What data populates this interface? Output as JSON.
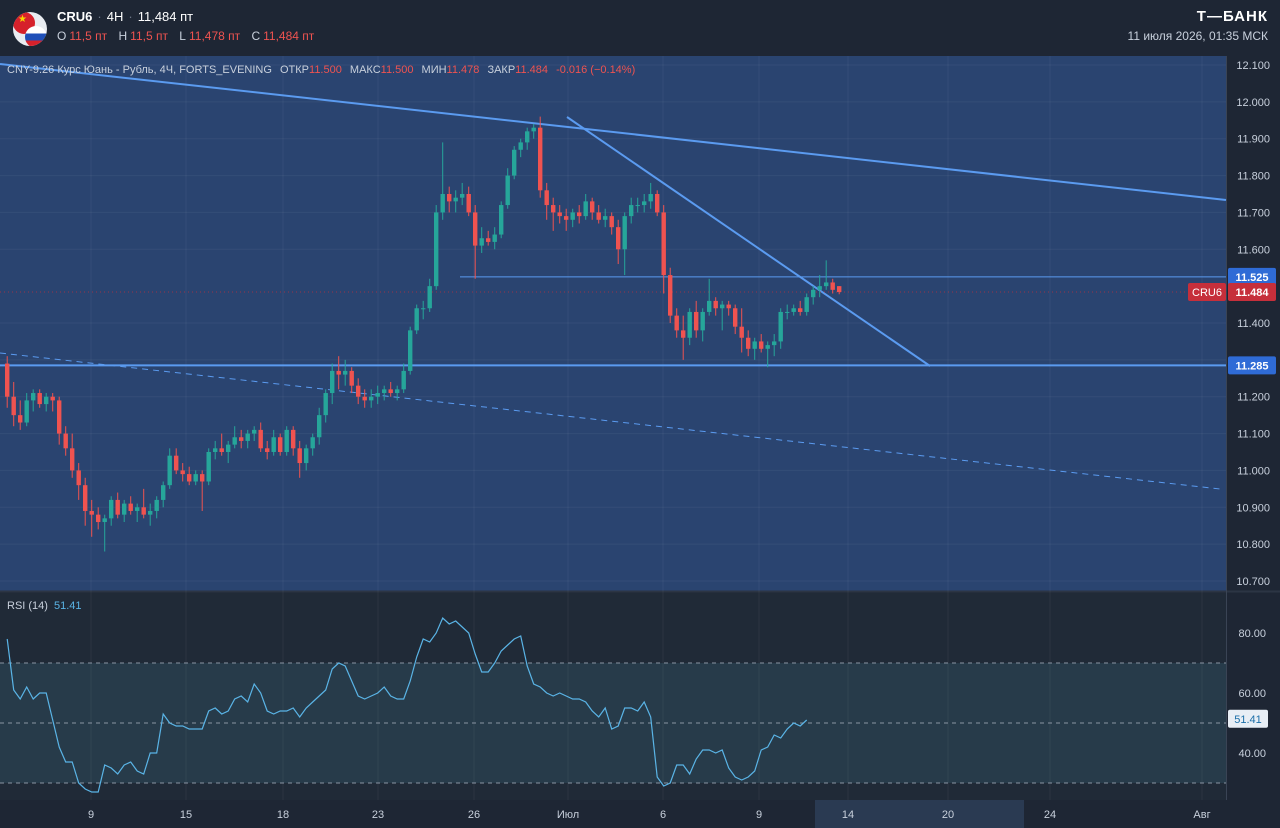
{
  "header": {
    "symbol": "CRU6",
    "timeframe": "4H",
    "price": "11,484 пт",
    "ohlc": [
      {
        "label": "O",
        "value": "11,5 пт"
      },
      {
        "label": "H",
        "value": "11,5 пт"
      },
      {
        "label": "L",
        "value": "11,478 пт"
      },
      {
        "label": "C",
        "value": "11,484 пт"
      }
    ],
    "brand": "Т—БАНК",
    "datetime": "11 июля 2026, 01:35 МСК"
  },
  "legend": {
    "instrument": "CNY-9.26 Курс Юань - Рубль, 4Ч, FORTS_EVENING",
    "open_label": "ОТКР",
    "open": "11.500",
    "high_label": "МАКС",
    "high": "11.500",
    "low_label": "МИН",
    "low": "11.478",
    "close_label": "ЗАКР",
    "close": "11.484",
    "change": "-0.016 (−0.14%)"
  },
  "rsi_legend": {
    "label": "RSI (14)",
    "value": "51.41"
  },
  "colors": {
    "up": "#26a69a",
    "down": "#ef5350",
    "trendline": "#5b9bf0",
    "rsi_line": "#5ab4e6",
    "price_tag": "#c62f3b",
    "level_tag": "#2f6bd6"
  },
  "chart_data": [
    {
      "type": "candlestick",
      "title": "CNY-9.26 Курс Юань - Рубль, 4Ч, FORTS_EVENING",
      "ylim": [
        10.7,
        12.1
      ],
      "y_ticks": [
        "12.100",
        "12.000",
        "11.900",
        "11.800",
        "11.700",
        "11.600",
        "11.400",
        "11.300",
        "11.200",
        "11.100",
        "11.000",
        "10.900",
        "10.800",
        "10.700"
      ],
      "x_ticks": [
        "9",
        "15",
        "18",
        "23",
        "26",
        "Июл",
        "6",
        "9",
        "14",
        "20",
        "24",
        "Авг"
      ],
      "candles": [
        [
          11.29,
          11.31,
          11.17,
          11.2
        ],
        [
          11.2,
          11.24,
          11.12,
          11.15
        ],
        [
          11.15,
          11.19,
          11.11,
          11.13
        ],
        [
          11.13,
          11.21,
          11.12,
          11.19
        ],
        [
          11.19,
          11.22,
          11.16,
          11.21
        ],
        [
          11.21,
          11.22,
          11.17,
          11.18
        ],
        [
          11.18,
          11.21,
          11.16,
          11.2
        ],
        [
          11.2,
          11.21,
          11.16,
          11.19
        ],
        [
          11.19,
          11.2,
          11.07,
          11.1
        ],
        [
          11.1,
          11.12,
          11.04,
          11.06
        ],
        [
          11.06,
          11.1,
          10.98,
          11.0
        ],
        [
          11.0,
          11.02,
          10.92,
          10.96
        ],
        [
          10.96,
          10.98,
          10.85,
          10.89
        ],
        [
          10.89,
          10.92,
          10.82,
          10.88
        ],
        [
          10.88,
          10.9,
          10.84,
          10.86
        ],
        [
          10.86,
          10.88,
          10.78,
          10.87
        ],
        [
          10.87,
          10.93,
          10.85,
          10.92
        ],
        [
          10.92,
          10.94,
          10.87,
          10.88
        ],
        [
          10.88,
          10.92,
          10.86,
          10.91
        ],
        [
          10.91,
          10.93,
          10.88,
          10.89
        ],
        [
          10.89,
          10.91,
          10.86,
          10.9
        ],
        [
          10.9,
          10.95,
          10.87,
          10.88
        ],
        [
          10.88,
          10.91,
          10.85,
          10.89
        ],
        [
          10.89,
          10.93,
          10.87,
          10.92
        ],
        [
          10.92,
          10.97,
          10.9,
          10.96
        ],
        [
          10.96,
          11.06,
          10.95,
          11.04
        ],
        [
          11.04,
          11.06,
          10.99,
          11.0
        ],
        [
          11.0,
          11.02,
          10.97,
          10.99
        ],
        [
          10.99,
          11.01,
          10.96,
          10.97
        ],
        [
          10.97,
          11.0,
          10.96,
          10.99
        ],
        [
          10.99,
          11.0,
          10.89,
          10.97
        ],
        [
          10.97,
          11.06,
          10.96,
          11.05
        ],
        [
          11.05,
          11.08,
          11.03,
          11.06
        ],
        [
          11.06,
          11.1,
          11.04,
          11.05
        ],
        [
          11.05,
          11.08,
          11.02,
          11.07
        ],
        [
          11.07,
          11.12,
          11.06,
          11.09
        ],
        [
          11.09,
          11.11,
          11.06,
          11.08
        ],
        [
          11.08,
          11.11,
          11.06,
          11.1
        ],
        [
          11.1,
          11.12,
          11.08,
          11.11
        ],
        [
          11.11,
          11.13,
          11.05,
          11.06
        ],
        [
          11.06,
          11.08,
          11.03,
          11.05
        ],
        [
          11.05,
          11.11,
          11.04,
          11.09
        ],
        [
          11.09,
          11.1,
          11.04,
          11.05
        ],
        [
          11.05,
          11.12,
          11.04,
          11.11
        ],
        [
          11.11,
          11.12,
          11.04,
          11.06
        ],
        [
          11.06,
          11.08,
          10.98,
          11.02
        ],
        [
          11.02,
          11.07,
          11.0,
          11.06
        ],
        [
          11.06,
          11.1,
          11.04,
          11.09
        ],
        [
          11.09,
          11.17,
          11.07,
          11.15
        ],
        [
          11.15,
          11.22,
          11.13,
          11.21
        ],
        [
          11.21,
          11.29,
          11.18,
          11.27
        ],
        [
          11.27,
          11.31,
          11.22,
          11.26
        ],
        [
          11.26,
          11.3,
          11.23,
          11.27
        ],
        [
          11.27,
          11.28,
          11.21,
          11.23
        ],
        [
          11.23,
          11.25,
          11.18,
          11.2
        ],
        [
          11.2,
          11.22,
          11.17,
          11.19
        ],
        [
          11.19,
          11.22,
          11.17,
          11.2
        ],
        [
          11.2,
          11.23,
          11.18,
          11.21
        ],
        [
          11.21,
          11.23,
          11.19,
          11.22
        ],
        [
          11.22,
          11.24,
          11.2,
          11.21
        ],
        [
          11.21,
          11.23,
          11.19,
          11.22
        ],
        [
          11.22,
          11.29,
          11.21,
          11.27
        ],
        [
          11.27,
          11.39,
          11.26,
          11.38
        ],
        [
          11.38,
          11.45,
          11.37,
          11.44
        ],
        [
          11.44,
          11.46,
          11.41,
          11.44
        ],
        [
          11.44,
          11.52,
          11.43,
          11.5
        ],
        [
          11.5,
          11.72,
          11.49,
          11.7
        ],
        [
          11.7,
          11.89,
          11.68,
          11.75
        ],
        [
          11.75,
          11.77,
          11.7,
          11.73
        ],
        [
          11.73,
          11.76,
          11.7,
          11.74
        ],
        [
          11.74,
          11.78,
          11.72,
          11.75
        ],
        [
          11.75,
          11.77,
          11.69,
          11.7
        ],
        [
          11.7,
          11.72,
          11.52,
          11.61
        ],
        [
          11.61,
          11.66,
          11.59,
          11.63
        ],
        [
          11.63,
          11.65,
          11.61,
          11.62
        ],
        [
          11.62,
          11.66,
          11.6,
          11.64
        ],
        [
          11.64,
          11.73,
          11.63,
          11.72
        ],
        [
          11.72,
          11.82,
          11.71,
          11.8
        ],
        [
          11.8,
          11.88,
          11.79,
          11.87
        ],
        [
          11.87,
          11.9,
          11.85,
          11.89
        ],
        [
          11.89,
          11.93,
          11.87,
          11.92
        ],
        [
          11.92,
          11.94,
          11.9,
          11.93
        ],
        [
          11.93,
          11.96,
          11.74,
          11.76
        ],
        [
          11.76,
          11.78,
          11.68,
          11.72
        ],
        [
          11.72,
          11.74,
          11.65,
          11.7
        ],
        [
          11.7,
          11.72,
          11.67,
          11.69
        ],
        [
          11.69,
          11.71,
          11.65,
          11.68
        ],
        [
          11.68,
          11.71,
          11.66,
          11.7
        ],
        [
          11.7,
          11.72,
          11.67,
          11.69
        ],
        [
          11.69,
          11.75,
          11.68,
          11.73
        ],
        [
          11.73,
          11.74,
          11.68,
          11.7
        ],
        [
          11.7,
          11.72,
          11.67,
          11.68
        ],
        [
          11.68,
          11.71,
          11.66,
          11.69
        ],
        [
          11.69,
          11.7,
          11.64,
          11.66
        ],
        [
          11.66,
          11.68,
          11.56,
          11.6
        ],
        [
          11.6,
          11.7,
          11.53,
          11.69
        ],
        [
          11.69,
          11.74,
          11.67,
          11.72
        ],
        [
          11.72,
          11.74,
          11.7,
          11.72
        ],
        [
          11.72,
          11.75,
          11.7,
          11.73
        ],
        [
          11.73,
          11.78,
          11.71,
          11.75
        ],
        [
          11.75,
          11.76,
          11.69,
          11.7
        ],
        [
          11.7,
          11.72,
          11.48,
          11.53
        ],
        [
          11.53,
          11.55,
          11.4,
          11.42
        ],
        [
          11.42,
          11.44,
          11.36,
          11.38
        ],
        [
          11.38,
          11.42,
          11.3,
          11.36
        ],
        [
          11.36,
          11.44,
          11.34,
          11.43
        ],
        [
          11.43,
          11.46,
          11.36,
          11.38
        ],
        [
          11.38,
          11.44,
          11.35,
          11.43
        ],
        [
          11.43,
          11.52,
          11.42,
          11.46
        ],
        [
          11.46,
          11.47,
          11.42,
          11.44
        ],
        [
          11.44,
          11.46,
          11.38,
          11.45
        ],
        [
          11.45,
          11.46,
          11.42,
          11.44
        ],
        [
          11.44,
          11.45,
          11.37,
          11.39
        ],
        [
          11.39,
          11.44,
          11.32,
          11.36
        ],
        [
          11.36,
          11.38,
          11.31,
          11.33
        ],
        [
          11.33,
          11.36,
          11.3,
          11.35
        ],
        [
          11.35,
          11.37,
          11.32,
          11.33
        ],
        [
          11.33,
          11.35,
          11.28,
          11.34
        ],
        [
          11.34,
          11.37,
          11.31,
          11.35
        ],
        [
          11.35,
          11.44,
          11.33,
          11.43
        ],
        [
          11.43,
          11.45,
          11.41,
          11.43
        ],
        [
          11.43,
          11.45,
          11.42,
          11.44
        ],
        [
          11.44,
          11.46,
          11.42,
          11.43
        ],
        [
          11.43,
          11.48,
          11.42,
          11.47
        ],
        [
          11.47,
          11.5,
          11.45,
          11.49
        ],
        [
          11.49,
          11.53,
          11.47,
          11.5
        ],
        [
          11.5,
          11.57,
          11.49,
          11.51
        ],
        [
          11.51,
          11.52,
          11.48,
          11.49
        ],
        [
          11.5,
          11.5,
          11.478,
          11.484
        ]
      ],
      "annotations": {
        "last_price": {
          "label": "CRU6",
          "value": "11.484",
          "y": 11.484
        },
        "level_upper": {
          "value": "11.525",
          "y": 11.525
        },
        "level_lower": {
          "value": "11.285",
          "y": 11.285
        }
      }
    },
    {
      "type": "line",
      "title": "RSI (14)",
      "ylim": [
        26,
        88
      ],
      "y_ticks": [
        "80.00",
        "60.00",
        "40.00"
      ],
      "levels": [
        70,
        50,
        30
      ],
      "last_value": "51.41",
      "values": [
        78,
        61,
        58,
        62,
        58,
        60,
        60,
        51,
        42,
        37,
        37,
        30,
        28,
        27,
        27,
        36,
        35,
        33,
        36,
        37,
        34,
        33,
        40,
        40,
        53,
        50,
        49,
        49,
        48,
        48,
        48,
        54,
        55,
        53,
        54,
        58,
        59,
        57,
        63,
        60,
        54,
        53,
        54,
        54,
        55,
        52,
        55,
        57,
        59,
        61,
        68,
        70,
        69,
        64,
        59,
        58,
        59,
        60,
        62,
        59,
        58,
        58,
        64,
        72,
        78,
        77,
        80,
        85,
        83,
        84,
        82,
        80,
        73,
        67,
        67,
        70,
        74,
        76,
        78,
        79,
        69,
        63,
        62,
        60,
        59,
        60,
        59,
        58,
        58,
        57,
        54,
        52,
        55,
        48,
        49,
        55,
        55,
        54,
        57,
        52,
        32,
        29,
        30,
        36,
        36,
        33,
        38,
        41,
        41,
        40,
        41,
        35,
        32,
        31,
        32,
        34,
        41,
        42,
        46,
        45,
        48,
        50,
        49,
        51
      ]
    }
  ]
}
